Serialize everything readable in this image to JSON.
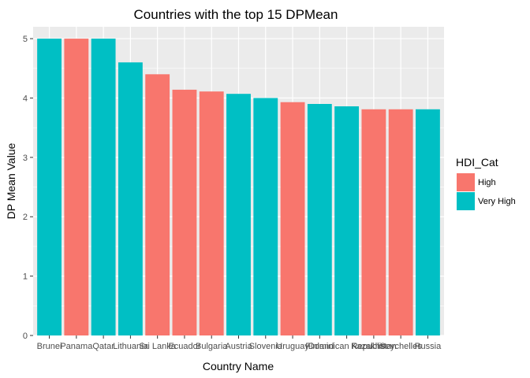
{
  "chart_data": {
    "type": "bar",
    "title": "Countries with the top 15 DPMean",
    "xlabel": "Country Name",
    "ylabel": "DP Mean Value",
    "ylim": [
      0,
      5.2
    ],
    "yticks": [
      0,
      1,
      2,
      3,
      4,
      5
    ],
    "grid": true,
    "legend": {
      "title": "HDI_Cat",
      "placement": "right",
      "entries": [
        {
          "label": "High",
          "color": "#F8766D"
        },
        {
          "label": "Very High",
          "color": "#00BFC4"
        }
      ]
    },
    "categories": [
      "Brunei",
      "Panama",
      "Qatar",
      "Lithuania",
      "Sri Lanka",
      "Ecuador",
      "Bulgaria",
      "Austria",
      "Slovenia",
      "Uruguay",
      "Finland",
      "Dominican Republic",
      "Kazakhstan",
      "Seychelles",
      "Russia"
    ],
    "values": [
      5.0,
      5.0,
      5.0,
      4.6,
      4.4,
      4.14,
      4.11,
      4.07,
      4.0,
      3.93,
      3.9,
      3.86,
      3.81,
      3.81,
      3.81
    ],
    "groups": [
      "Very High",
      "High",
      "Very High",
      "Very High",
      "High",
      "High",
      "High",
      "Very High",
      "Very High",
      "High",
      "Very High",
      "Very High",
      "High",
      "High",
      "Very High"
    ]
  }
}
